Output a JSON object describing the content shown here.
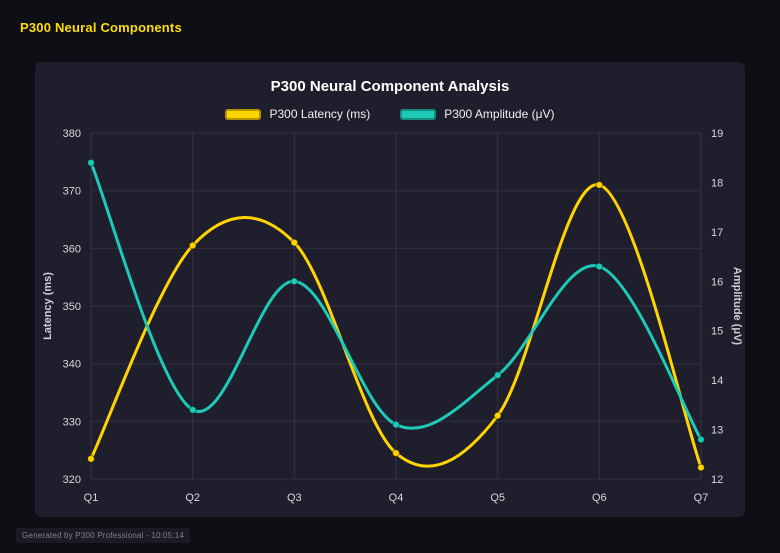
{
  "header": {
    "title": "P300 Neural Components"
  },
  "footer": {
    "text": "Generated by P300 Professional - 10:05:14"
  },
  "chart_data": {
    "type": "line",
    "title": "P300 Neural Component Analysis",
    "categories": [
      "Q1",
      "Q2",
      "Q3",
      "Q4",
      "Q5",
      "Q6",
      "Q7"
    ],
    "series": [
      {
        "name": "P300 Latency (ms)",
        "axis": "left",
        "color": "#ffd400",
        "values": [
          323.5,
          360.5,
          361,
          324.5,
          331,
          371,
          322
        ]
      },
      {
        "name": "P300 Amplitude (μV)",
        "axis": "right",
        "color": "#1ec9b8",
        "values": [
          18.4,
          13.4,
          16.0,
          13.1,
          14.1,
          16.3,
          12.8
        ]
      }
    ],
    "axes": {
      "left": {
        "label": "Latency (ms)",
        "min": 320,
        "max": 380,
        "tick_step": 10
      },
      "right": {
        "label": "Amplitude (μV)",
        "min": 12,
        "max": 19,
        "tick_step": 1
      }
    },
    "legend_position": "top",
    "grid": true,
    "colors": {
      "background": "#0e0e15",
      "panel": "#1e1e2c",
      "accent": "#ffdd00"
    }
  }
}
